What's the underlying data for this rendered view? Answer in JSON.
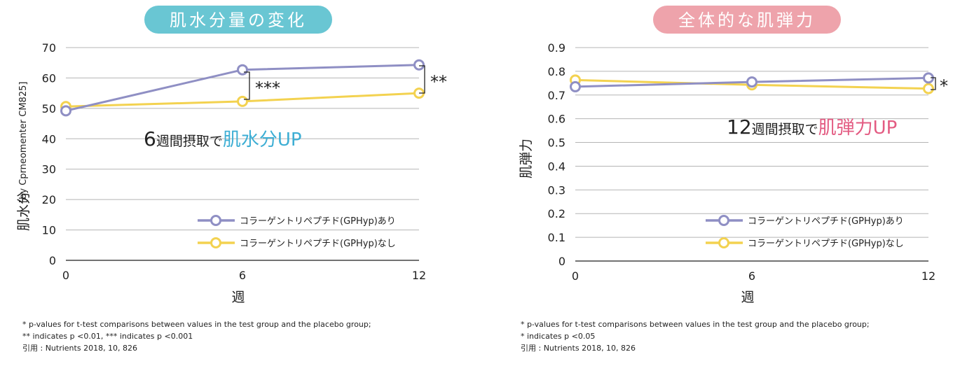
{
  "colors": {
    "series_with": "#8f8fc4",
    "series_without": "#f3d250",
    "left_pill": "#69c6d3",
    "right_pill": "#eea3ab",
    "left_accent": "#3daed4",
    "right_accent": "#e35b82",
    "grid": "#b5b5b5"
  },
  "left": {
    "pill_label": "肌水分量の変化",
    "callout": {
      "number": "6",
      "middle": "週間摂取で",
      "strong": "肌水分UP"
    },
    "sig_marks": [
      "***",
      "**"
    ],
    "footnotes": [
      "* p-values for t-test comparisons between values in the test group and the placebo group;",
      "** indicates p <0.01, *** indicates p <0.001",
      "引用 : Nutrients 2018, 10, 826"
    ]
  },
  "right": {
    "pill_label": "全体的な肌弾力",
    "callout": {
      "number": "12",
      "middle": "週間摂取で",
      "strong": "肌弾力UP"
    },
    "sig_marks": [
      "*"
    ],
    "footnotes": [
      "* p-values for t-test comparisons between values in the test group and the placebo group;",
      "* indicates p <0.05",
      "引用 : Nutrients 2018, 10, 826"
    ]
  },
  "chart_data": [
    {
      "type": "line",
      "x": [
        0,
        6,
        12
      ],
      "xlabel": "週",
      "ylabel": "肌水分",
      "ylabel_small": "[by Cprneomenter CM825]",
      "ylim": [
        0,
        70
      ],
      "y_ticks": [
        0,
        10,
        20,
        30,
        40,
        50,
        60,
        70
      ],
      "x_tick_labels": [
        "0",
        "6",
        "12"
      ],
      "y_tick_labels": [
        "0",
        "10",
        "20",
        "30",
        "40",
        "50",
        "60",
        "70"
      ],
      "grid": true,
      "legend_position": "bottom-right",
      "series": [
        {
          "name": "コラーゲントリペプチド(GPHyp)あり",
          "values": [
            49.2,
            62.7,
            64.3
          ]
        },
        {
          "name": "コラーゲントリペプチド(GPHyp)なし",
          "values": [
            50.6,
            52.3,
            55.0
          ]
        }
      ]
    },
    {
      "type": "line",
      "x": [
        0,
        6,
        12
      ],
      "xlabel": "週",
      "ylabel": "肌弾力",
      "ylim": [
        0,
        0.9
      ],
      "y_ticks": [
        0,
        0.1,
        0.2,
        0.3,
        0.4,
        0.5,
        0.6,
        0.7,
        0.8,
        0.9
      ],
      "x_tick_labels": [
        "0",
        "6",
        "12"
      ],
      "y_tick_labels": [
        "0",
        "0.1",
        "0.2",
        "0.3",
        "0.4",
        "0.5",
        "0.6",
        "0.7",
        "0.8",
        "0.9"
      ],
      "grid": true,
      "legend_position": "bottom-right",
      "series": [
        {
          "name": "コラーゲントリペプチド(GPHyp)あり",
          "values": [
            0.735,
            0.755,
            0.772
          ]
        },
        {
          "name": "コラーゲントリペプチド(GPHyp)なし",
          "values": [
            0.763,
            0.743,
            0.727
          ]
        }
      ]
    }
  ]
}
